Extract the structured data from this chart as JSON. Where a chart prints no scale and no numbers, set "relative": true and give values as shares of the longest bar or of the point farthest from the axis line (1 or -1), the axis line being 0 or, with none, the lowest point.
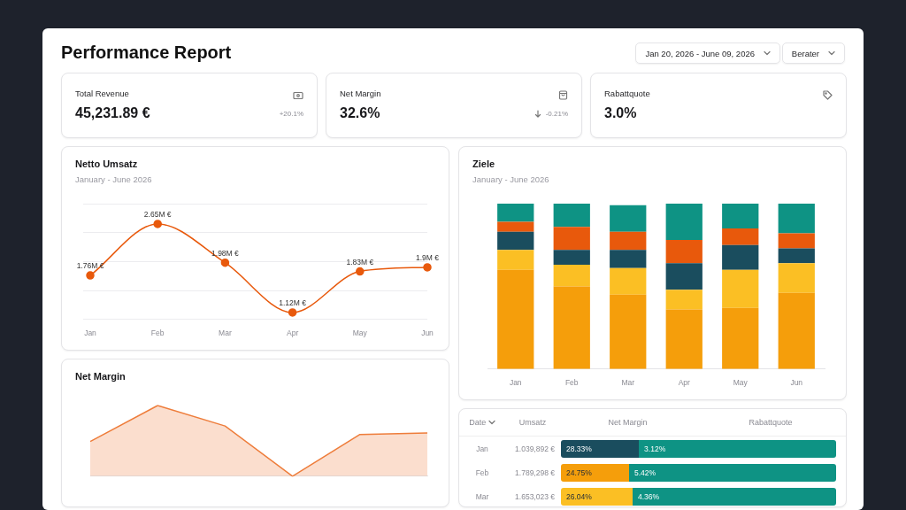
{
  "chart_data": [
    {
      "type": "other",
      "title": "Performance Report",
      "annotations": [
        "Jan 20, 2026 - June 09, 2026",
        "Berater",
        "Total Revenue",
        "45,231.89 €",
        "+20.1%",
        "Net Margin",
        "32.6%",
        "-0.21%",
        "Rabattquote",
        "3.0%"
      ]
    },
    {
      "type": "line",
      "title": "Netto Umsatz",
      "subtitle": "January - June 2026",
      "categories": [
        "Jan",
        "Feb",
        "Mar",
        "Apr",
        "May",
        "Jun"
      ],
      "values": [
        1.76,
        2.65,
        1.98,
        1.12,
        1.83,
        1.9
      ],
      "value_labels": [
        "1.76M €",
        "2.65M €",
        "1.98M €",
        "1.12M €",
        "1.83M €",
        "1.9M €"
      ],
      "color": "#e8590c",
      "marker": "circle",
      "grid": "y",
      "tick_labels": "x"
    },
    {
      "type": "area",
      "title": "Net Margin",
      "relative": true,
      "categories": [
        null,
        null,
        null,
        null,
        null,
        null
      ],
      "values": [
        0.49,
        1,
        0.71,
        0,
        0.59,
        0.61
      ],
      "color": "#ee7d3b"
    },
    {
      "type": "bar",
      "title": "Ziele",
      "subtitle": "January - June 2026",
      "stacked": true,
      "relative": true,
      "categories": [
        "Jan",
        "Feb",
        "Mar",
        "Apr",
        "May",
        "Jun"
      ],
      "series": [
        {
          "color": "#f59e0b",
          "values": [
            0.6,
            0.5,
            0.45,
            0.36,
            0.37,
            0.46
          ]
        },
        {
          "color": "#fbbf24",
          "values": [
            0.12,
            0.13,
            0.16,
            0.12,
            0.23,
            0.18
          ]
        },
        {
          "color": "#1a4d5e",
          "values": [
            0.11,
            0.09,
            0.11,
            0.16,
            0.15,
            0.09
          ]
        },
        {
          "color": "#e8590c",
          "values": [
            0.06,
            0.14,
            0.11,
            0.14,
            0.1,
            0.09
          ]
        },
        {
          "color": "#0e9384",
          "values": [
            0.11,
            0.14,
            0.16,
            0.22,
            0.15,
            0.18
          ]
        }
      ]
    },
    {
      "type": "other",
      "xlabel": "Date",
      "annotations": [
        "Umsatz",
        "Net Margin",
        "Rabattquote",
        "1.039,892 €",
        "3.12%",
        "1.789,298 €",
        "5.42%",
        "1.653,023 €",
        "4.36%"
      ],
      "categories": [
        "Jan",
        "Feb",
        "Mar"
      ],
      "color": "#0e9384",
      "series": [
        {
          "values": [
            28.33,
            24.75,
            26.04
          ],
          "value_labels": [
            "28.33%",
            "24.75%",
            "26.04%"
          ],
          "colors": [
            "#1a4d5e",
            "#f59e0b",
            "#fbbf24"
          ]
        }
      ]
    }
  ]
}
